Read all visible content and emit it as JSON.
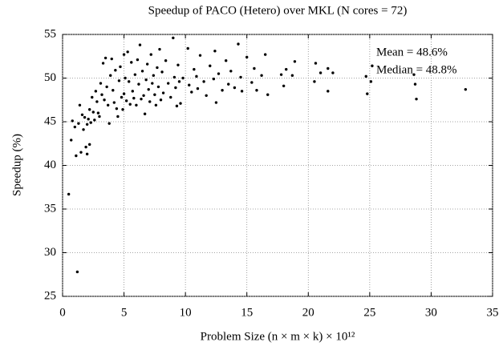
{
  "chart_data": {
    "type": "scatter",
    "title": "Speedup of PACO (Hetero) over MKL (N cores = 72)",
    "xlabel": "Problem Size (n × m × k) × 10¹²",
    "ylabel": "Speedup (%)",
    "annotations": [
      "Mean = 48.6%",
      "Median = 48.8%"
    ],
    "color": "#000000",
    "grid": true,
    "xlim": [
      0,
      35
    ],
    "xticks": [
      0,
      5,
      10,
      15,
      20,
      25,
      30,
      35
    ],
    "ylim": [
      25,
      55
    ],
    "yticks": [
      25,
      30,
      35,
      40,
      45,
      50,
      55
    ],
    "x": [
      0.5,
      1.2,
      0.7,
      0.8,
      1.0,
      1.1,
      1.3,
      1.4,
      1.5,
      1.6,
      1.7,
      1.8,
      1.9,
      2.0,
      2.0,
      2.1,
      2.2,
      2.2,
      2.3,
      2.4,
      2.5,
      2.6,
      2.7,
      2.8,
      2.9,
      3.0,
      3.1,
      3.2,
      3.3,
      3.4,
      3.5,
      3.6,
      3.7,
      3.8,
      3.9,
      4.0,
      4.1,
      4.2,
      4.3,
      4.4,
      4.5,
      4.6,
      4.7,
      4.8,
      4.9,
      5.0,
      5.0,
      5.1,
      5.2,
      5.3,
      5.4,
      5.5,
      5.6,
      5.7,
      5.8,
      5.9,
      6.0,
      6.1,
      6.2,
      6.3,
      6.4,
      6.5,
      6.6,
      6.7,
      6.8,
      6.9,
      7.0,
      7.1,
      7.2,
      7.3,
      7.4,
      7.5,
      7.6,
      7.7,
      7.8,
      7.9,
      8.0,
      8.1,
      8.2,
      8.4,
      8.6,
      8.8,
      9.0,
      9.1,
      9.2,
      9.3,
      9.4,
      9.5,
      9.6,
      9.8,
      10.2,
      10.3,
      10.5,
      10.7,
      10.9,
      11.0,
      11.2,
      11.5,
      11.7,
      12.0,
      12.3,
      12.4,
      12.5,
      12.7,
      13.0,
      13.3,
      13.5,
      13.7,
      14.0,
      14.3,
      14.5,
      14.6,
      15.0,
      15.4,
      15.6,
      15.8,
      16.2,
      16.5,
      16.7,
      17.8,
      18.0,
      18.2,
      18.7,
      18.9,
      20.5,
      20.6,
      21.0,
      21.6,
      21.6,
      22.0,
      24.7,
      24.8,
      25.1,
      25.2,
      28.6,
      28.7,
      28.8,
      32.8
    ],
    "values": [
      36.7,
      27.8,
      42.9,
      45.1,
      44.4,
      41.1,
      44.8,
      46.9,
      41.5,
      45.8,
      44.1,
      45.5,
      42.1,
      41.3,
      44.7,
      45.3,
      42.4,
      46.4,
      44.9,
      47.8,
      46.1,
      45.2,
      48.5,
      47.3,
      46.0,
      45.6,
      49.4,
      48.1,
      51.7,
      47.5,
      52.3,
      49.0,
      46.9,
      44.8,
      50.3,
      52.2,
      48.6,
      47.2,
      50.9,
      46.5,
      45.6,
      49.7,
      51.3,
      47.8,
      46.4,
      52.7,
      48.2,
      50.0,
      47.4,
      53.0,
      49.6,
      47.0,
      51.8,
      48.5,
      47.7,
      50.4,
      46.9,
      52.1,
      49.3,
      53.8,
      47.6,
      50.8,
      48.0,
      45.9,
      49.8,
      51.6,
      48.7,
      47.3,
      52.7,
      49.4,
      50.3,
      48.1,
      46.9,
      51.2,
      49.0,
      53.3,
      47.5,
      50.7,
      48.3,
      52.0,
      49.4,
      47.8,
      54.6,
      50.1,
      48.9,
      46.8,
      51.5,
      49.6,
      47.1,
      50.0,
      53.4,
      49.2,
      48.4,
      51.0,
      50.2,
      48.8,
      52.6,
      49.6,
      48.0,
      51.4,
      49.9,
      53.1,
      47.2,
      50.5,
      48.6,
      52.0,
      49.3,
      50.8,
      48.9,
      53.9,
      50.1,
      48.5,
      52.4,
      49.5,
      51.1,
      48.6,
      50.3,
      52.7,
      48.1,
      50.4,
      49.1,
      51.0,
      50.3,
      51.9,
      49.6,
      51.7,
      50.6,
      51.1,
      48.5,
      50.6,
      50.2,
      48.2,
      49.6,
      51.4,
      50.4,
      49.3,
      47.6,
      48.7
    ]
  }
}
